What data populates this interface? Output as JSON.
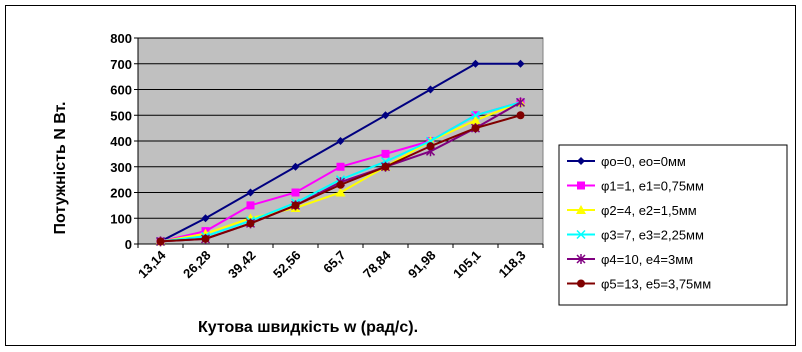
{
  "chart_data": {
    "type": "line",
    "title": "",
    "xlabel": "Кутова швидкість w (рад/с).",
    "ylabel": "Потужність N Вт.",
    "categories": [
      "13,14",
      "26,28",
      "39,42",
      "52,56",
      "65,7",
      "78,84",
      "91,98",
      "105,1",
      "118,3"
    ],
    "ylim": [
      0,
      800
    ],
    "yticks": [
      0,
      100,
      200,
      300,
      400,
      500,
      600,
      700,
      800
    ],
    "grid": "horizontal",
    "plot_background": "#C0C0C0",
    "legend_position": "right",
    "series": [
      {
        "name": "φо=0, ео=0мм",
        "color": "#000080",
        "marker": "diamond",
        "values": [
          10,
          100,
          200,
          300,
          400,
          500,
          600,
          700,
          700
        ]
      },
      {
        "name": "φ1=1, е1=0,75мм",
        "color": "#FF00FF",
        "marker": "square",
        "values": [
          10,
          50,
          150,
          200,
          300,
          350,
          400,
          500,
          550
        ]
      },
      {
        "name": "φ2=4, е2=1,5мм",
        "color": "#FFFF00",
        "marker": "triangle",
        "values": [
          10,
          40,
          100,
          140,
          200,
          300,
          400,
          480,
          550
        ]
      },
      {
        "name": "φ3=7, е3=2,25мм",
        "color": "#00FFFF",
        "marker": "x",
        "values": [
          10,
          30,
          90,
          160,
          250,
          320,
          400,
          500,
          550
        ]
      },
      {
        "name": "φ4=10, е4=3мм",
        "color": "#800080",
        "marker": "star",
        "values": [
          10,
          20,
          80,
          150,
          240,
          300,
          360,
          450,
          550
        ]
      },
      {
        "name": "φ5=13, е5=3,75мм",
        "color": "#800000",
        "marker": "circle",
        "values": [
          10,
          20,
          80,
          150,
          230,
          300,
          380,
          450,
          500
        ]
      }
    ]
  }
}
